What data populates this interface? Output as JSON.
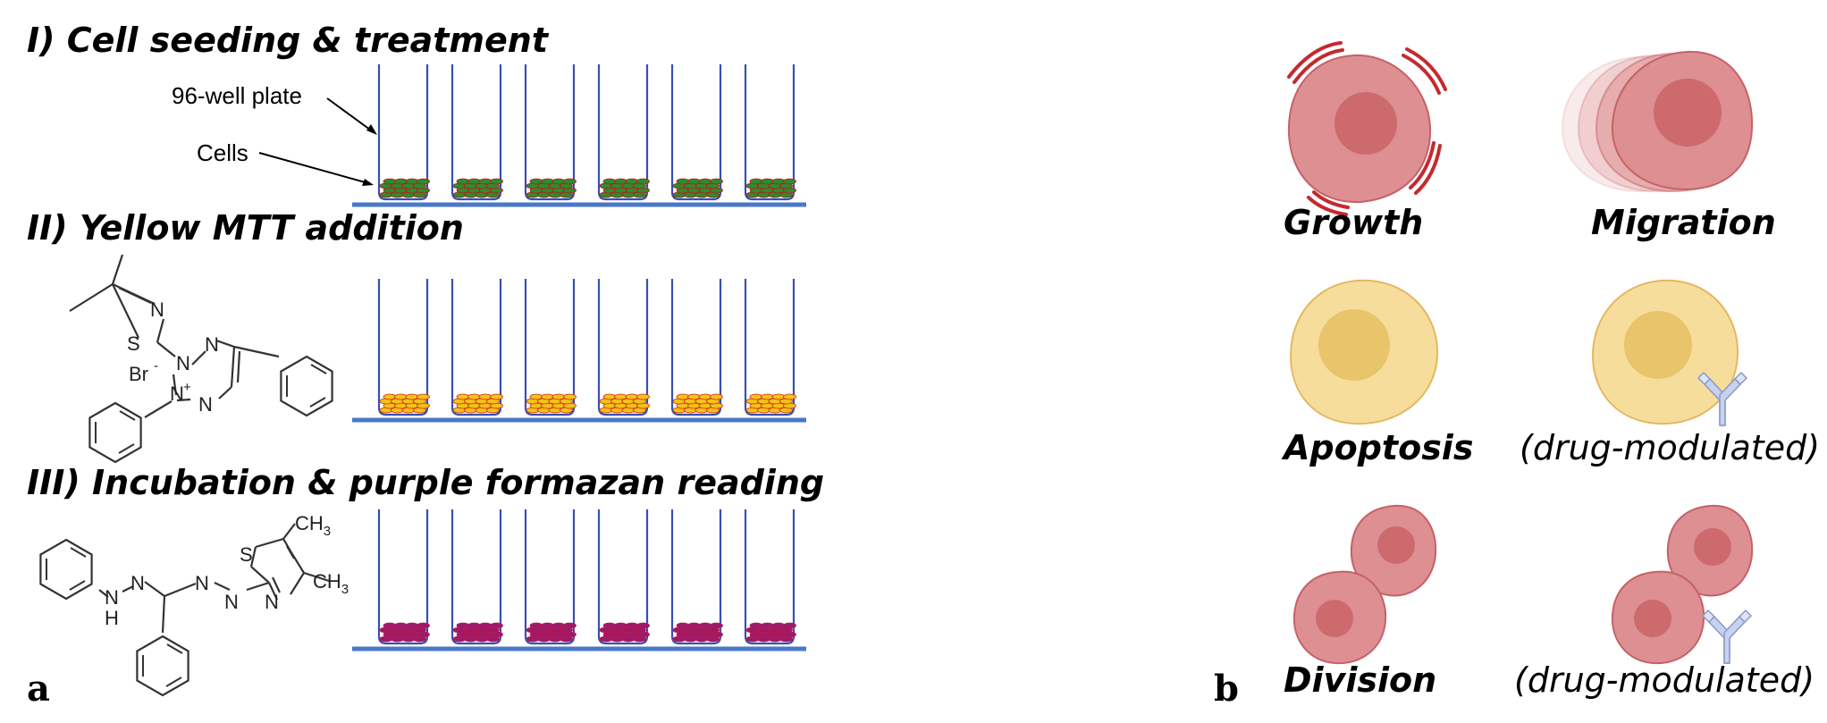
{
  "panel_a": {
    "letter": "a",
    "steps": [
      {
        "title": "I) Cell seeding & treatment",
        "cell_color": "#2e8b2e",
        "cell_edge": "#c01818"
      },
      {
        "title": "II) Yellow MTT addition",
        "cell_color": "#f3c21a",
        "cell_edge": "#d03010"
      },
      {
        "title": "III) Incubation & purple formazan reading",
        "cell_color": "#9c1a6a",
        "cell_edge": "#c01848"
      }
    ],
    "labels": {
      "plate": "96-well plate",
      "cells": "Cells"
    },
    "mtt": {
      "N": "N",
      "S": "S",
      "Br": "Br",
      "minus": "-",
      "plus": "+"
    },
    "formazan": {
      "N": "N",
      "H": "H",
      "S": "S",
      "CH": "CH",
      "three": "3"
    },
    "well_count": 6,
    "colors": {
      "well_wall": "#3a4fb0",
      "baseline": "#4a78c8"
    }
  },
  "panel_b": {
    "letter": "b",
    "labels": {
      "growth": "Growth",
      "migration": "Migration",
      "apoptosis": "Apoptosis",
      "drug_mod_1": "(drug-modulated)",
      "division": "Division",
      "drug_mod_2": "(drug-modulated)"
    },
    "colors": {
      "red_cell": "#dd8f92",
      "red_nucleus": "#cd6a6e",
      "red_edge": "#c56267",
      "growth_marks": "#c42a2e",
      "yellow_cell": "#f7dd9c",
      "yellow_nucleus": "#e8c46a",
      "yellow_edge": "#e3b860",
      "antibody": "#c7d2ee",
      "antibody_edge": "#8a98c8"
    }
  }
}
